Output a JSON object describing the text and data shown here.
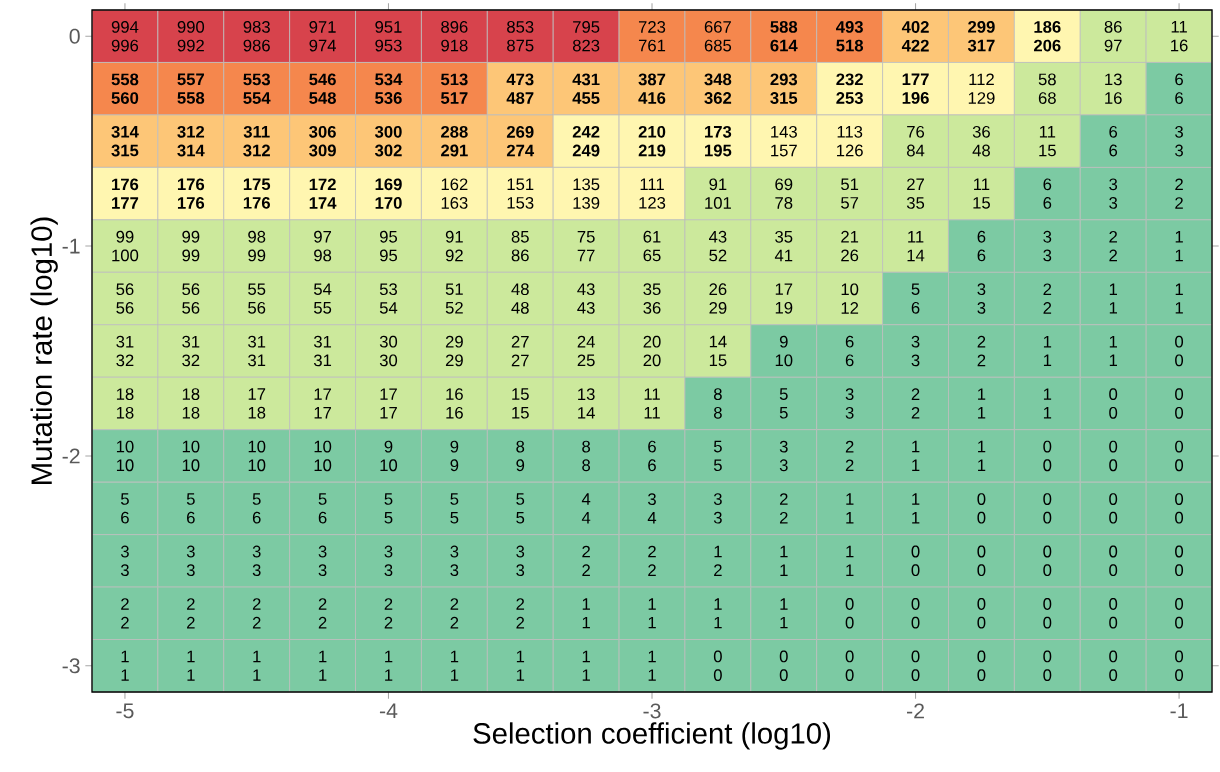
{
  "chart_data": {
    "type": "heatmap",
    "xlabel": "Selection coefficient (log10)",
    "ylabel": "Mutation rate (log10)",
    "x": [
      -5,
      -4.75,
      -4.5,
      -4.25,
      -4,
      -3.75,
      -3.5,
      -3.25,
      -3,
      -2.75,
      -2.5,
      -2.25,
      -2,
      -1.75,
      -1.5,
      -1.25,
      -1
    ],
    "y": [
      0,
      -0.25,
      -0.5,
      -0.75,
      -1,
      -1.25,
      -1.5,
      -1.75,
      -2,
      -2.25,
      -2.5,
      -2.75,
      -3
    ],
    "xlim": [
      -5.125,
      -0.875
    ],
    "ylim": [
      -3.125,
      0.125
    ],
    "data_labels": true,
    "xticks": [
      -5,
      -4,
      -3,
      -2,
      -1
    ],
    "yticks": [
      -3,
      -2,
      -1,
      0
    ],
    "cells": [
      [
        994,
        990,
        983,
        971,
        951,
        896,
        853,
        795,
        723,
        667,
        588,
        493,
        402,
        299,
        186,
        86,
        11
      ],
      [
        558,
        557,
        553,
        546,
        534,
        513,
        473,
        431,
        387,
        348,
        293,
        232,
        177,
        112,
        58,
        13,
        6
      ],
      [
        314,
        312,
        311,
        306,
        300,
        288,
        269,
        242,
        210,
        173,
        143,
        113,
        76,
        36,
        11,
        6,
        3
      ],
      [
        176,
        176,
        175,
        172,
        169,
        162,
        151,
        135,
        111,
        91,
        69,
        51,
        27,
        11,
        6,
        3,
        2
      ],
      [
        99,
        99,
        98,
        97,
        95,
        91,
        85,
        75,
        61,
        43,
        35,
        21,
        11,
        6,
        3,
        2,
        1
      ],
      [
        56,
        56,
        55,
        54,
        53,
        51,
        48,
        43,
        35,
        26,
        17,
        10,
        5,
        3,
        2,
        1,
        1
      ],
      [
        31,
        31,
        31,
        31,
        30,
        29,
        27,
        24,
        20,
        14,
        9,
        6,
        3,
        2,
        1,
        1,
        0
      ],
      [
        18,
        18,
        17,
        17,
        17,
        16,
        15,
        13,
        11,
        8,
        5,
        3,
        2,
        1,
        1,
        0,
        0
      ],
      [
        10,
        10,
        10,
        10,
        9,
        9,
        8,
        8,
        6,
        5,
        3,
        2,
        1,
        1,
        0,
        0,
        0
      ],
      [
        5,
        5,
        5,
        5,
        5,
        5,
        5,
        4,
        3,
        3,
        2,
        1,
        1,
        0,
        0,
        0,
        0
      ],
      [
        3,
        3,
        3,
        3,
        3,
        3,
        3,
        2,
        2,
        1,
        1,
        1,
        0,
        0,
        0,
        0,
        0
      ],
      [
        2,
        2,
        2,
        2,
        2,
        2,
        2,
        1,
        1,
        1,
        1,
        0,
        0,
        0,
        0,
        0,
        0
      ],
      [
        1,
        1,
        1,
        1,
        1,
        1,
        1,
        1,
        1,
        0,
        0,
        0,
        0,
        0,
        0,
        0,
        0
      ]
    ],
    "value_labels": [
      [
        "996",
        "992",
        "986",
        "974",
        "953",
        "918",
        "875",
        "823",
        "761",
        "685",
        "**614**",
        "**518**",
        "**422**",
        "**317**",
        "**206**",
        "97",
        "16"
      ],
      [
        "**560**",
        "**558**",
        "**554**",
        "**548**",
        "**536**",
        "**517**",
        "**487**",
        "**455**",
        "**416**",
        "**362**",
        "**315**",
        "**253**",
        "**196**",
        "129",
        "68",
        "16",
        "6"
      ],
      [
        "**315**",
        "**314**",
        "**312**",
        "**309**",
        "**302**",
        "**291**",
        "**274**",
        "**249**",
        "**219**",
        "**195**",
        "157",
        "126",
        "84",
        "48",
        "15",
        "6",
        "3"
      ],
      [
        "**177**",
        "**176**",
        "**176**",
        "**174**",
        "**170**",
        "163",
        "153",
        "139",
        "123",
        "101",
        "78",
        "57",
        "35",
        "15",
        "6",
        "3",
        "2"
      ],
      [
        "100",
        "99",
        "99",
        "98",
        "95",
        "92",
        "86",
        "77",
        "65",
        "52",
        "41",
        "26",
        "14",
        "6",
        "3",
        "2",
        "1"
      ],
      [
        "56",
        "56",
        "56",
        "55",
        "54",
        "52",
        "48",
        "43",
        "36",
        "29",
        "19",
        "12",
        "6",
        "3",
        "2",
        "1",
        "1"
      ],
      [
        "32",
        "32",
        "31",
        "31",
        "30",
        "29",
        "27",
        "25",
        "20",
        "15",
        "10",
        "6",
        "3",
        "2",
        "1",
        "1",
        "0"
      ],
      [
        "18",
        "18",
        "18",
        "17",
        "17",
        "16",
        "15",
        "14",
        "11",
        "8",
        "5",
        "3",
        "2",
        "1",
        "1",
        "0",
        "0"
      ],
      [
        "10",
        "10",
        "10",
        "10",
        "10",
        "9",
        "9",
        "8",
        "6",
        "5",
        "3",
        "2",
        "1",
        "1",
        "0",
        "0",
        "0"
      ],
      [
        "6",
        "6",
        "6",
        "6",
        "5",
        "5",
        "5",
        "4",
        "4",
        "3",
        "2",
        "1",
        "1",
        "0",
        "0",
        "0",
        "0"
      ],
      [
        "3",
        "3",
        "3",
        "3",
        "3",
        "3",
        "3",
        "2",
        "2",
        "2",
        "1",
        "1",
        "0",
        "0",
        "0",
        "0",
        "0"
      ],
      [
        "2",
        "2",
        "2",
        "2",
        "2",
        "2",
        "2",
        "1",
        "1",
        "1",
        "1",
        "0",
        "0",
        "0",
        "0",
        "0",
        "0"
      ],
      [
        "1",
        "1",
        "1",
        "1",
        "1",
        "1",
        "1",
        "1",
        "1",
        "0",
        "0",
        "0",
        "0",
        "0",
        "0",
        "0",
        "0"
      ]
    ],
    "colors": [
      [
        "#d7434c",
        "#d7434c",
        "#d7434c",
        "#d7434c",
        "#d7434c",
        "#d7434c",
        "#d7434c",
        "#d7434c",
        "#f5874d",
        "#f5874d",
        "#f5874d",
        "#f5874d",
        "#fdc677",
        "#fdc677",
        "#fff6b0",
        "#cce99c",
        "#cce99c"
      ],
      [
        "#f5874d",
        "#f5874d",
        "#f5874d",
        "#f5874d",
        "#f5874d",
        "#f5874d",
        "#fdc677",
        "#fdc677",
        "#fdc677",
        "#fdc677",
        "#fdc677",
        "#fff6b0",
        "#fff6b0",
        "#fff6b0",
        "#cce99c",
        "#cce99c",
        "#7ccaa3"
      ],
      [
        "#fdc677",
        "#fdc677",
        "#fdc677",
        "#fdc677",
        "#fdc677",
        "#fdc677",
        "#fdc677",
        "#fff6b0",
        "#fff6b0",
        "#fff6b0",
        "#fff6b0",
        "#fff6b0",
        "#cce99c",
        "#cce99c",
        "#cce99c",
        "#7ccaa3",
        "#7ccaa3"
      ],
      [
        "#fff6b0",
        "#fff6b0",
        "#fff6b0",
        "#fff6b0",
        "#fff6b0",
        "#fff6b0",
        "#fff6b0",
        "#fff6b0",
        "#fff6b0",
        "#cce99c",
        "#cce99c",
        "#cce99c",
        "#cce99c",
        "#cce99c",
        "#7ccaa3",
        "#7ccaa3",
        "#7ccaa3"
      ],
      [
        "#cce99c",
        "#cce99c",
        "#cce99c",
        "#cce99c",
        "#cce99c",
        "#cce99c",
        "#cce99c",
        "#cce99c",
        "#cce99c",
        "#cce99c",
        "#cce99c",
        "#cce99c",
        "#cce99c",
        "#7ccaa3",
        "#7ccaa3",
        "#7ccaa3",
        "#7ccaa3"
      ],
      [
        "#cce99c",
        "#cce99c",
        "#cce99c",
        "#cce99c",
        "#cce99c",
        "#cce99c",
        "#cce99c",
        "#cce99c",
        "#cce99c",
        "#cce99c",
        "#cce99c",
        "#cce99c",
        "#7ccaa3",
        "#7ccaa3",
        "#7ccaa3",
        "#7ccaa3",
        "#7ccaa3"
      ],
      [
        "#cce99c",
        "#cce99c",
        "#cce99c",
        "#cce99c",
        "#cce99c",
        "#cce99c",
        "#cce99c",
        "#cce99c",
        "#cce99c",
        "#cce99c",
        "#7ccaa3",
        "#7ccaa3",
        "#7ccaa3",
        "#7ccaa3",
        "#7ccaa3",
        "#7ccaa3",
        "#7ccaa3"
      ],
      [
        "#cce99c",
        "#cce99c",
        "#cce99c",
        "#cce99c",
        "#cce99c",
        "#cce99c",
        "#cce99c",
        "#cce99c",
        "#cce99c",
        "#7ccaa3",
        "#7ccaa3",
        "#7ccaa3",
        "#7ccaa3",
        "#7ccaa3",
        "#7ccaa3",
        "#7ccaa3",
        "#7ccaa3"
      ],
      [
        "#7ccaa3",
        "#7ccaa3",
        "#7ccaa3",
        "#7ccaa3",
        "#7ccaa3",
        "#7ccaa3",
        "#7ccaa3",
        "#7ccaa3",
        "#7ccaa3",
        "#7ccaa3",
        "#7ccaa3",
        "#7ccaa3",
        "#7ccaa3",
        "#7ccaa3",
        "#7ccaa3",
        "#7ccaa3",
        "#7ccaa3"
      ],
      [
        "#7ccaa3",
        "#7ccaa3",
        "#7ccaa3",
        "#7ccaa3",
        "#7ccaa3",
        "#7ccaa3",
        "#7ccaa3",
        "#7ccaa3",
        "#7ccaa3",
        "#7ccaa3",
        "#7ccaa3",
        "#7ccaa3",
        "#7ccaa3",
        "#7ccaa3",
        "#7ccaa3",
        "#7ccaa3",
        "#7ccaa3"
      ],
      [
        "#7ccaa3",
        "#7ccaa3",
        "#7ccaa3",
        "#7ccaa3",
        "#7ccaa3",
        "#7ccaa3",
        "#7ccaa3",
        "#7ccaa3",
        "#7ccaa3",
        "#7ccaa3",
        "#7ccaa3",
        "#7ccaa3",
        "#7ccaa3",
        "#7ccaa3",
        "#7ccaa3",
        "#7ccaa3",
        "#7ccaa3"
      ],
      [
        "#7ccaa3",
        "#7ccaa3",
        "#7ccaa3",
        "#7ccaa3",
        "#7ccaa3",
        "#7ccaa3",
        "#7ccaa3",
        "#7ccaa3",
        "#7ccaa3",
        "#7ccaa3",
        "#7ccaa3",
        "#7ccaa3",
        "#7ccaa3",
        "#7ccaa3",
        "#7ccaa3",
        "#7ccaa3",
        "#7ccaa3"
      ],
      [
        "#7ccaa3",
        "#7ccaa3",
        "#7ccaa3",
        "#7ccaa3",
        "#7ccaa3",
        "#7ccaa3",
        "#7ccaa3",
        "#7ccaa3",
        "#7ccaa3",
        "#7ccaa3",
        "#7ccaa3",
        "#7ccaa3",
        "#7ccaa3",
        "#7ccaa3",
        "#7ccaa3",
        "#7ccaa3",
        "#7ccaa3"
      ]
    ]
  }
}
